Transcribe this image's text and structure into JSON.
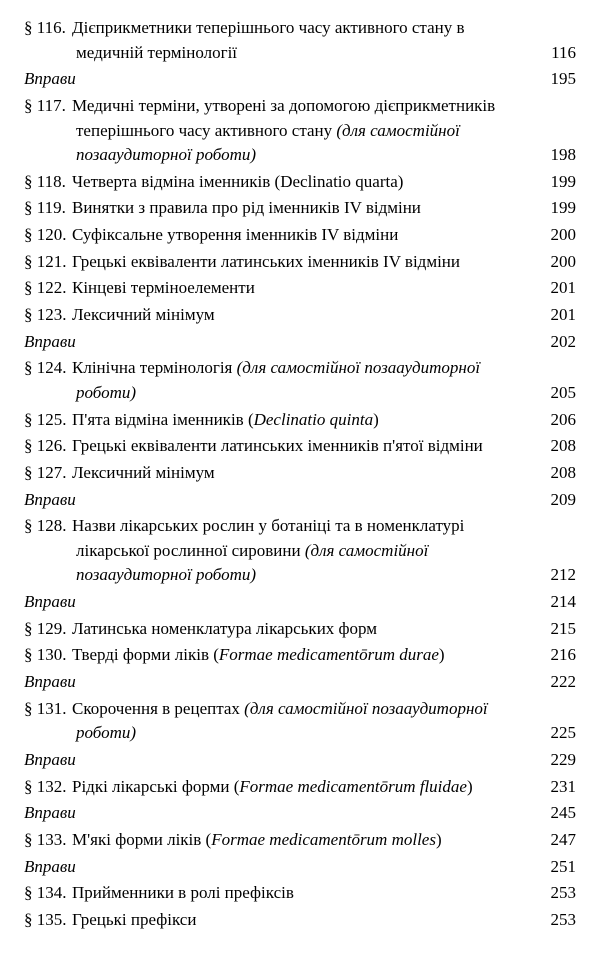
{
  "entries": [
    {
      "type": "section",
      "num": "§ 116.",
      "text_lines": [
        "Дієприкметники теперішнього часу активного стану в",
        "медичній термінології"
      ],
      "page": "116"
    },
    {
      "type": "exercises",
      "label": "Вправи",
      "page": "195"
    },
    {
      "type": "section",
      "num": "§ 117.",
      "text_lines": [
        "Медичні терміни, утворені за допомогою дієприкметників",
        "теперішнього часу активного стану <em>(для самостійної</em>",
        "<em>позааудиторної роботи)</em>"
      ],
      "page": "198"
    },
    {
      "type": "section",
      "num": "§ 118.",
      "text_lines": [
        "Четверта відміна іменників (Declinatio quarta)"
      ],
      "page": "199"
    },
    {
      "type": "section",
      "num": "§ 119.",
      "text_lines": [
        "Винятки з правила про рід іменників IV відміни"
      ],
      "page": "199"
    },
    {
      "type": "section",
      "num": "§ 120.",
      "text_lines": [
        "Суфіксальне утворення іменників IV відміни"
      ],
      "page": "200"
    },
    {
      "type": "section",
      "num": "§ 121.",
      "text_lines": [
        "Грецькі еквіваленти латинських іменників IV відміни"
      ],
      "page": "200"
    },
    {
      "type": "section",
      "num": "§ 122.",
      "text_lines": [
        "Кінцеві терміноелементи"
      ],
      "page": "201"
    },
    {
      "type": "section",
      "num": "§ 123.",
      "text_lines": [
        "Лексичний мінімум"
      ],
      "page": "201"
    },
    {
      "type": "exercises",
      "label": "Вправи",
      "page": "202"
    },
    {
      "type": "section",
      "num": "§ 124.",
      "text_lines": [
        "Клінічна термінологія <em>(для самостійної позааудиторної</em>",
        "<em>роботи)</em>"
      ],
      "page": "205"
    },
    {
      "type": "section",
      "num": "§ 125.",
      "text_lines": [
        "П'ята відміна іменників (<em>Declinatio quinta</em>)"
      ],
      "page": "206"
    },
    {
      "type": "section",
      "num": "§ 126.",
      "text_lines": [
        "Грецькі еквіваленти латинських іменників п'ятої відміни"
      ],
      "page": "208"
    },
    {
      "type": "section",
      "num": "§ 127.",
      "text_lines": [
        "Лексичний мінімум"
      ],
      "page": "208"
    },
    {
      "type": "exercises",
      "label": "Вправи",
      "page": "209"
    },
    {
      "type": "section",
      "num": "§ 128.",
      "text_lines": [
        "Назви лікарських рослин у ботаніці та в номенклатурі",
        "лікарської рослинної сировини <em>(для самостійної</em>",
        "<em>позааудиторної роботи)</em>"
      ],
      "page": "212"
    },
    {
      "type": "exercises",
      "label": "Вправи",
      "page": "214"
    },
    {
      "type": "section",
      "num": "§ 129.",
      "text_lines": [
        "Латинська номенклатура лікарських форм"
      ],
      "page": "215"
    },
    {
      "type": "section",
      "num": "§ 130.",
      "text_lines": [
        "Тверді форми ліків (<em>Formae medicamentōrum durae</em>)"
      ],
      "page": "216"
    },
    {
      "type": "exercises",
      "label": "Вправи",
      "page": "222"
    },
    {
      "type": "section",
      "num": "§ 131.",
      "text_lines": [
        "Скорочення в рецептах <em>(для самостійної позааудиторної</em>",
        "<em>роботи)</em>"
      ],
      "page": "225"
    },
    {
      "type": "exercises",
      "label": "Вправи",
      "page": "229"
    },
    {
      "type": "section",
      "num": "§ 132.",
      "text_lines": [
        "Рідкі лікарські форми (<em>Formae medicamentōrum fluidae</em>)"
      ],
      "page": "231"
    },
    {
      "type": "exercises",
      "label": "Вправи",
      "page": "245"
    },
    {
      "type": "section",
      "num": "§ 133.",
      "text_lines": [
        "М'які форми ліків (<em>Formae medicamentōrum molles</em>)"
      ],
      "page": "247"
    },
    {
      "type": "exercises",
      "label": "Вправи",
      "page": "251"
    },
    {
      "type": "section",
      "num": "§ 134.",
      "text_lines": [
        "Прийменники в ролі префіксів"
      ],
      "page": "253"
    },
    {
      "type": "section",
      "num": "§ 135.",
      "text_lines": [
        "Грецькі префікси"
      ],
      "page": "253"
    }
  ]
}
